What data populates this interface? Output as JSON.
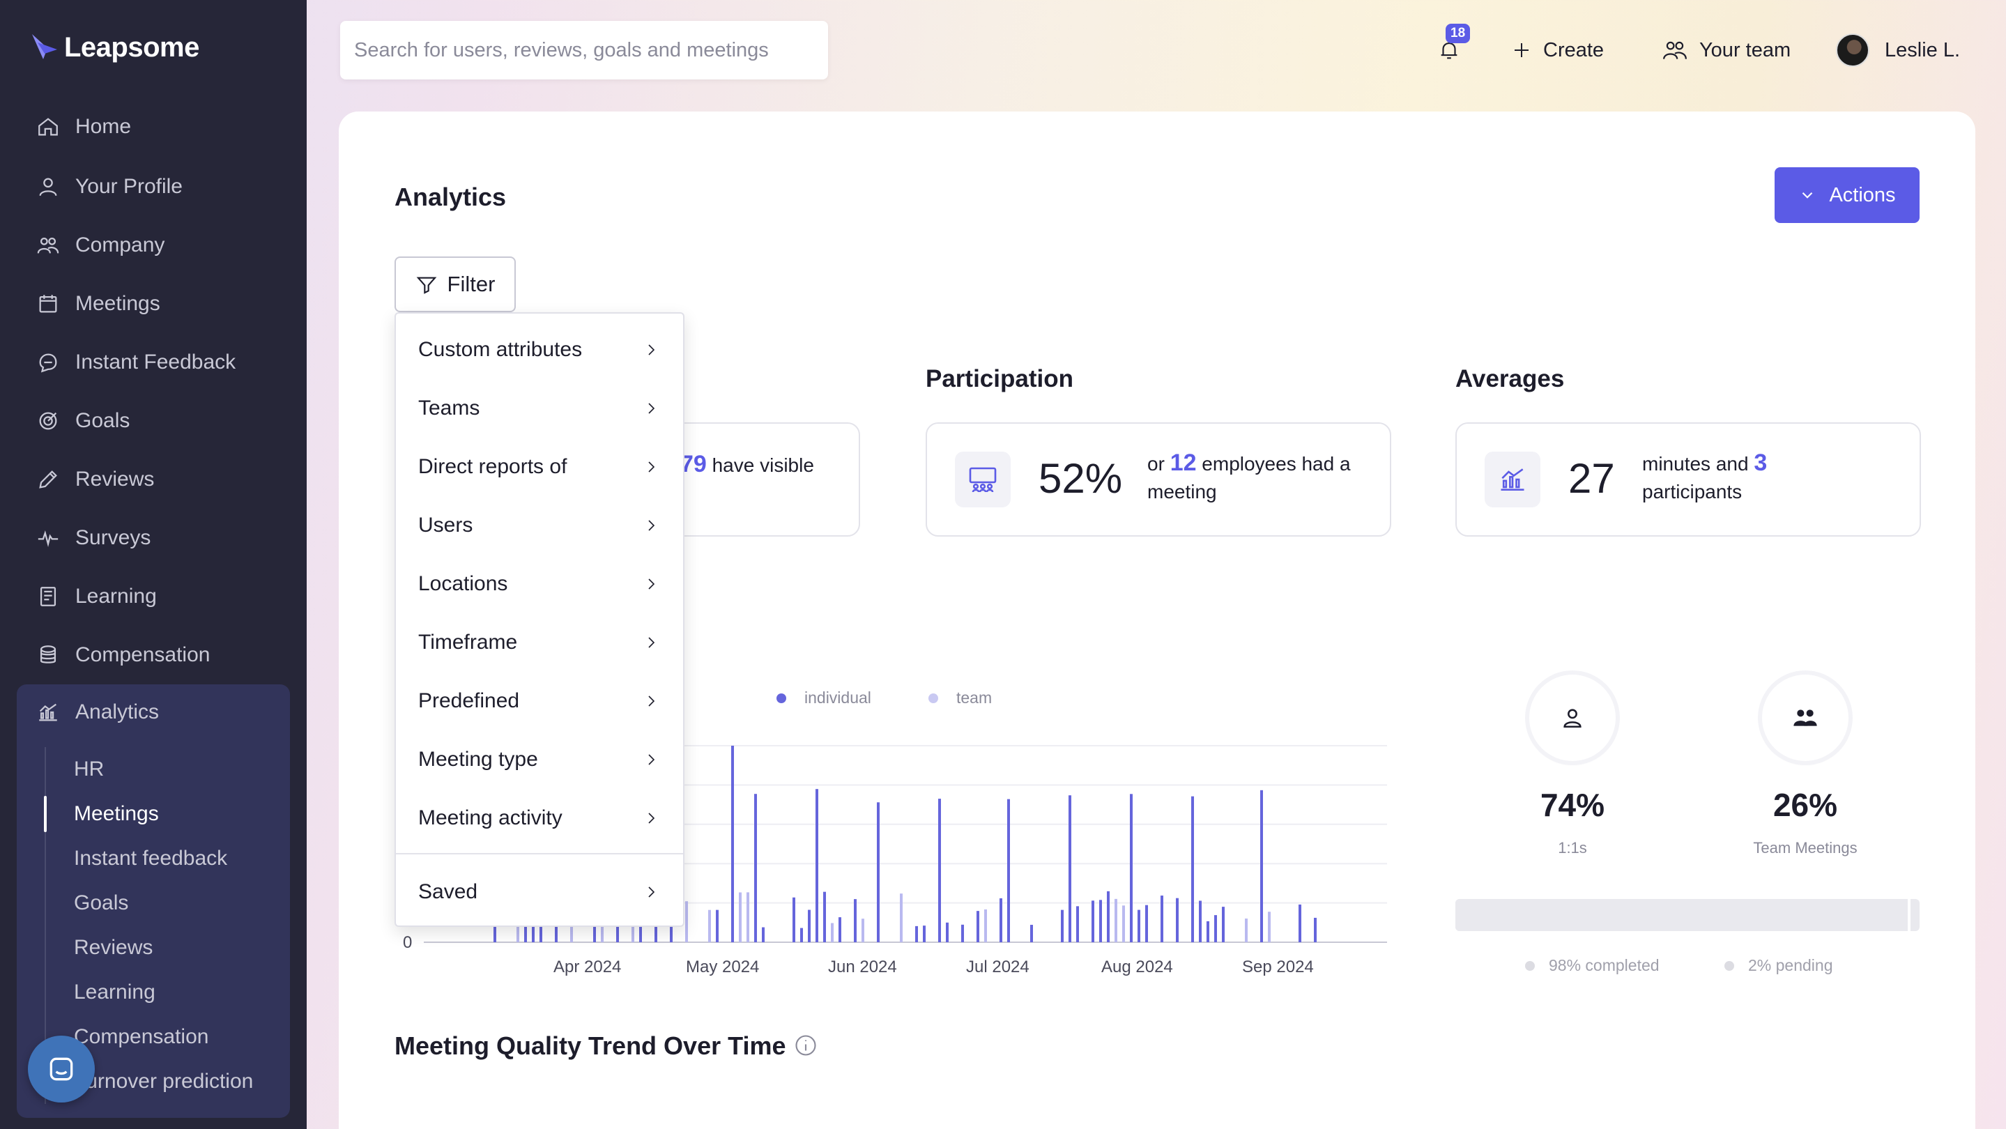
{
  "app": {
    "name": "Leapsome"
  },
  "sidebar": {
    "items": [
      {
        "label": "Home",
        "icon": "home-icon"
      },
      {
        "label": "Your Profile",
        "icon": "user-icon"
      },
      {
        "label": "Company",
        "icon": "company-icon"
      },
      {
        "label": "Meetings",
        "icon": "calendar-icon"
      },
      {
        "label": "Instant Feedback",
        "icon": "chat-icon"
      },
      {
        "label": "Goals",
        "icon": "target-icon"
      },
      {
        "label": "Reviews",
        "icon": "pen-icon"
      },
      {
        "label": "Surveys",
        "icon": "pulse-icon"
      },
      {
        "label": "Learning",
        "icon": "book-icon"
      },
      {
        "label": "Compensation",
        "icon": "coins-icon"
      },
      {
        "label": "Analytics",
        "icon": "analytics-icon"
      }
    ],
    "analytics_sub": [
      "HR",
      "Meetings",
      "Instant feedback",
      "Goals",
      "Reviews",
      "Learning",
      "Compensation",
      "Turnover prediction"
    ],
    "active_sub": "Meetings"
  },
  "topbar": {
    "search_placeholder": "Search for users, reviews, goals and meetings",
    "notifications_count": "18",
    "create_label": "Create",
    "team_label": "Your team",
    "user_name": "Leslie L."
  },
  "page": {
    "title": "Analytics",
    "actions_label": "Actions",
    "filter_label": "Filter"
  },
  "filter_menu": {
    "items": [
      "Custom attributes",
      "Teams",
      "Direct reports of",
      "Users",
      "Locations",
      "Timeframe",
      "Predefined",
      "Meeting type",
      "Meeting activity"
    ],
    "saved_label": "Saved"
  },
  "stats": {
    "first": {
      "highlight": "79",
      "text": "have visible"
    },
    "participation": {
      "title": "Participation",
      "value": "52%",
      "prefix": "or",
      "highlight": "12",
      "text_line1": "employees had a",
      "text_line2": "meeting"
    },
    "averages": {
      "title": "Averages",
      "value": "27",
      "text_line1": "minutes and",
      "highlight": "3",
      "text_line2": "participants"
    }
  },
  "chart_data": {
    "type": "bar",
    "legend": [
      "individual",
      "team"
    ],
    "colors": {
      "individual": "#6565dc",
      "team": "#b9b9f0"
    },
    "x_tick_labels": [
      "Apr 2024",
      "May 2024",
      "Jun 2024",
      "Jul 2024",
      "Aug 2024",
      "Sep 2024"
    ],
    "y_tick_labels": [
      "0"
    ],
    "note": ""
  },
  "split": {
    "one_on_one": {
      "value": "74%",
      "label": "1:1s"
    },
    "team": {
      "value": "26%",
      "label": "Team Meetings"
    },
    "completion": {
      "completed_label": "98% completed",
      "pending_label": "2% pending",
      "completed_fraction": 0.98
    }
  },
  "section": {
    "quality_title": "Meeting Quality Trend Over Time"
  }
}
